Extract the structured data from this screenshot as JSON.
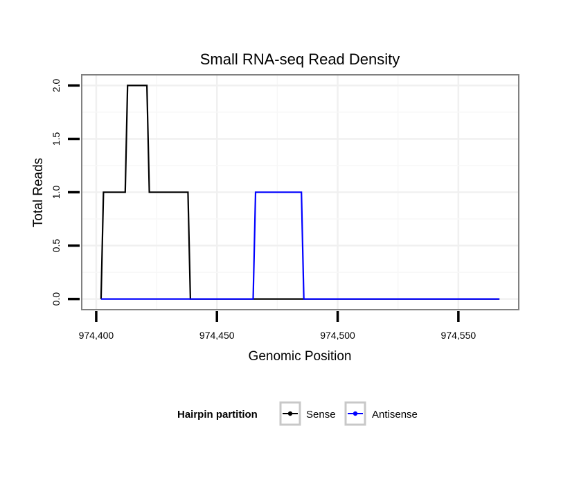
{
  "chart_data": {
    "type": "line",
    "title": "Small RNA-seq Read Density",
    "xlabel": "Genomic Position",
    "ylabel": "Total Reads",
    "xlim": [
      974394,
      974575
    ],
    "ylim": [
      -0.1,
      2.1
    ],
    "x_ticks": [
      974400,
      974450,
      974500,
      974550
    ],
    "x_tick_labels": [
      "974,400",
      "974,450",
      "974,500",
      "974,550"
    ],
    "y_ticks": [
      0,
      0.5,
      1,
      1.5,
      2
    ],
    "y_tick_labels": [
      "0.0",
      "0.5",
      "1.0",
      "1.5",
      "2.0"
    ],
    "grid": true,
    "legend": {
      "title": "Hairpin partition",
      "position": "bottom"
    },
    "series": [
      {
        "name": "Sense",
        "color": "#000000",
        "x": [
          974402,
          974403,
          974412,
          974413,
          974421,
          974422,
          974438,
          974439,
          974567
        ],
        "y": [
          0,
          1,
          1,
          2,
          2,
          1,
          1,
          0,
          0
        ]
      },
      {
        "name": "Antisense",
        "color": "#0000ff",
        "x": [
          974402,
          974465,
          974466,
          974485,
          974486,
          974567
        ],
        "y": [
          0,
          0,
          1,
          1,
          0,
          0
        ]
      }
    ]
  }
}
